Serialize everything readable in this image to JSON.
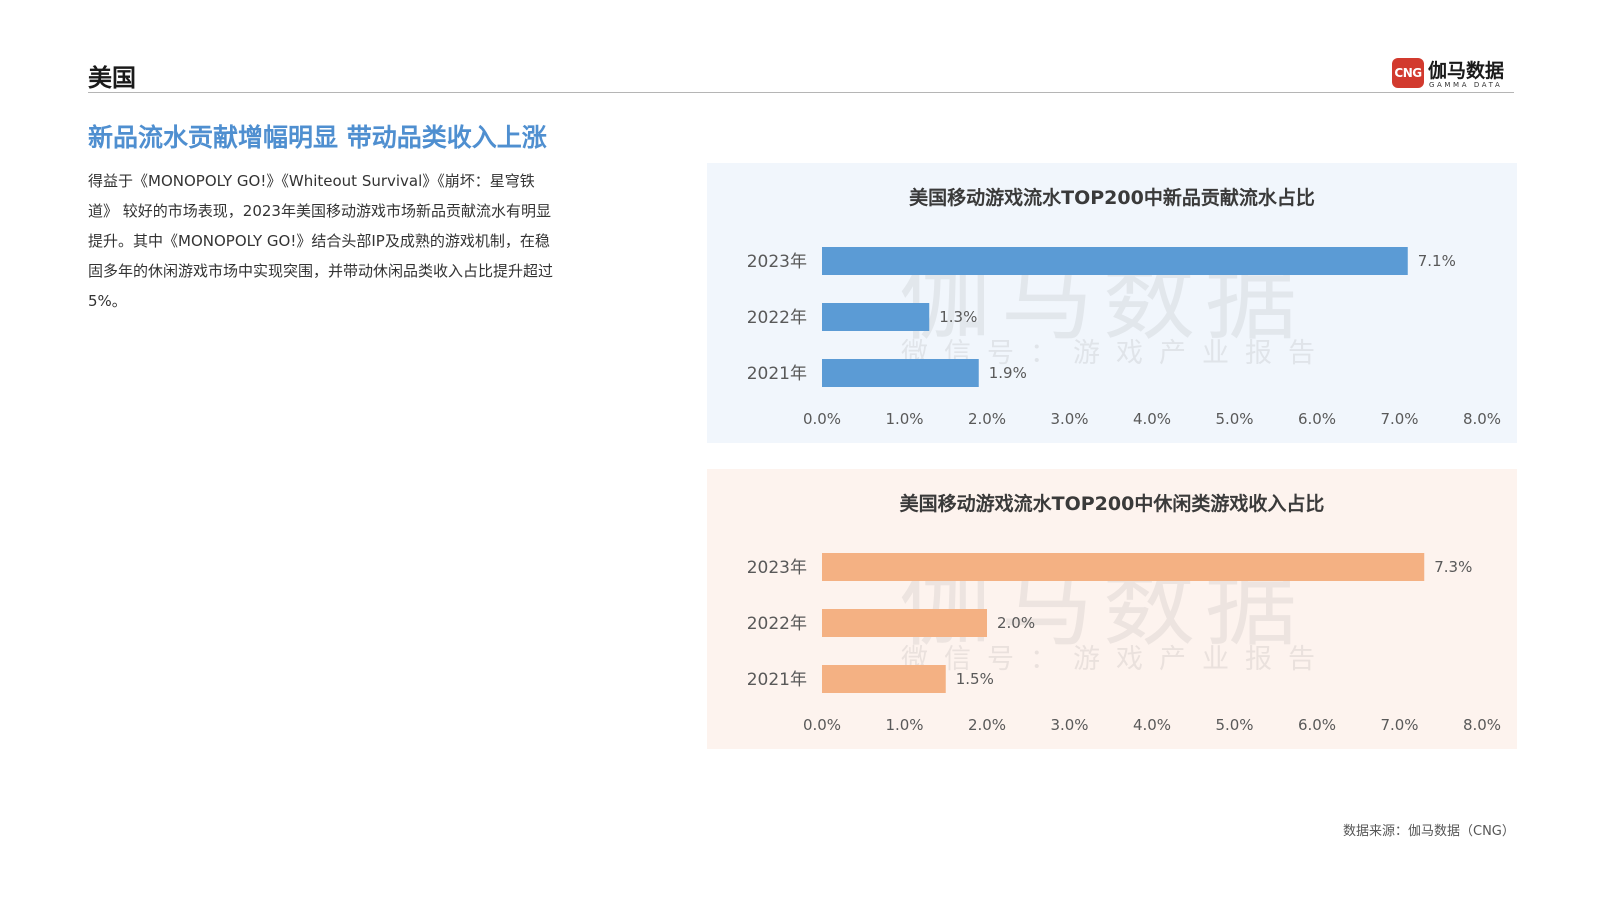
{
  "header": {
    "title": "美国"
  },
  "logo": {
    "badge": "CNG",
    "name": "伽马数据",
    "sub": "GAMMA DATA"
  },
  "headline": "新品流水贡献增幅明显 带动品类收入上涨",
  "body": "得益于《MONOPOLY GO!》《Whiteout Survival》《崩坏：星穹铁道》 较好的市场表现，2023年美国移动游戏市场新品贡献流水有明显提升。其中《MONOPOLY GO!》结合头部IP及成熟的游戏机制，在稳固多年的休闲游戏市场中实现突围，并带动休闲品类收入占比提升超过5%。",
  "watermark": {
    "main": "伽马数据",
    "sub": "微信号：游戏产业报告"
  },
  "source": "数据来源：伽马数据（CNG）",
  "chart_data": [
    {
      "type": "bar",
      "orientation": "horizontal",
      "title": "美国移动游戏流水TOP200中新品贡献流水占比",
      "categories": [
        "2023年",
        "2022年",
        "2021年"
      ],
      "values": [
        7.1,
        1.3,
        1.9
      ],
      "value_labels": [
        "7.1%",
        "1.3%",
        "1.9%"
      ],
      "xlim": [
        0,
        8
      ],
      "ticks": [
        "0.0%",
        "1.0%",
        "2.0%",
        "3.0%",
        "4.0%",
        "5.0%",
        "6.0%",
        "7.0%",
        "8.0%"
      ],
      "color": "#5b9bd5"
    },
    {
      "type": "bar",
      "orientation": "horizontal",
      "title": "美国移动游戏流水TOP200中休闲类游戏收入占比",
      "categories": [
        "2023年",
        "2022年",
        "2021年"
      ],
      "values": [
        7.3,
        2.0,
        1.5
      ],
      "value_labels": [
        "7.3%",
        "2.0%",
        "1.5%"
      ],
      "xlim": [
        0,
        8
      ],
      "ticks": [
        "0.0%",
        "1.0%",
        "2.0%",
        "3.0%",
        "4.0%",
        "5.0%",
        "6.0%",
        "7.0%",
        "8.0%"
      ],
      "color": "#f4b183"
    }
  ]
}
